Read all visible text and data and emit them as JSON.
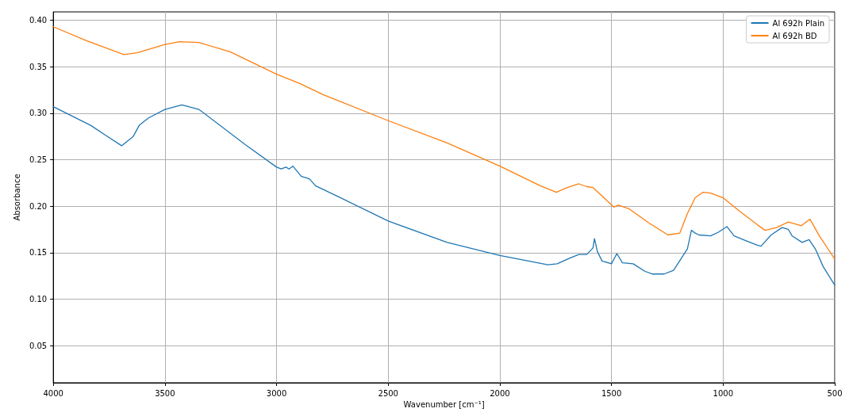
{
  "chart_data": {
    "type": "line",
    "xlabel": "Wavenumber [cm⁻¹]",
    "ylabel": "Absorbance",
    "xlim": [
      4000,
      500
    ],
    "xticks": [
      4000,
      3500,
      3000,
      2500,
      2000,
      1500,
      1000,
      500
    ],
    "ylim": [
      0.01,
      0.409
    ],
    "yticks": [
      {
        "value": 0.05,
        "label": "0.05"
      },
      {
        "value": 0.1,
        "label": "0.10"
      },
      {
        "value": 0.15,
        "label": "0.15"
      },
      {
        "value": 0.2,
        "label": "0.20"
      },
      {
        "value": 0.25,
        "label": "0.25"
      },
      {
        "value": 0.3,
        "label": "0.30"
      },
      {
        "value": 0.35,
        "label": "0.35"
      },
      {
        "value": 0.4,
        "label": "0.40"
      }
    ],
    "grid": true,
    "legend": "top right",
    "marker": "none",
    "line_style": "solid",
    "series": [
      {
        "name": "Al 692h Plain",
        "color": "#1f77b4",
        "x": [
          4000,
          3833,
          3764,
          3694,
          3642,
          3615,
          3573,
          3500,
          3424,
          3347,
          3139,
          3000,
          2979,
          2958,
          2944,
          2927,
          2889,
          2861,
          2851,
          2826,
          2722,
          2500,
          2236,
          2000,
          1785,
          1743,
          1688,
          1646,
          1611,
          1583,
          1576,
          1563,
          1542,
          1500,
          1476,
          1451,
          1403,
          1351,
          1316,
          1264,
          1222,
          1160,
          1142,
          1125,
          1108,
          1056,
          1021,
          983,
          951,
          899,
          847,
          830,
          785,
          736,
          708,
          691,
          646,
          615,
          587,
          552,
          500
        ],
        "values": [
          0.307,
          0.287,
          0.276,
          0.265,
          0.275,
          0.287,
          0.295,
          0.304,
          0.309,
          0.304,
          0.266,
          0.242,
          0.24,
          0.242,
          0.24,
          0.243,
          0.232,
          0.23,
          0.229,
          0.222,
          0.21,
          0.184,
          0.161,
          0.147,
          0.137,
          0.138,
          0.144,
          0.148,
          0.148,
          0.155,
          0.165,
          0.151,
          0.141,
          0.138,
          0.149,
          0.139,
          0.138,
          0.13,
          0.127,
          0.127,
          0.131,
          0.154,
          0.174,
          0.171,
          0.169,
          0.168,
          0.172,
          0.178,
          0.168,
          0.163,
          0.158,
          0.157,
          0.169,
          0.177,
          0.175,
          0.168,
          0.161,
          0.164,
          0.154,
          0.135,
          0.115
        ]
      },
      {
        "name": "Al 692h BD",
        "color": "#ff7f0e",
        "x": [
          4000,
          3851,
          3684,
          3625,
          3500,
          3434,
          3347,
          3208,
          3000,
          2896,
          2792,
          2500,
          2236,
          2000,
          1819,
          1747,
          1698,
          1646,
          1611,
          1583,
          1542,
          1490,
          1469,
          1420,
          1333,
          1247,
          1194,
          1160,
          1125,
          1090,
          1056,
          1000,
          934,
          847,
          812,
          760,
          708,
          649,
          611,
          569,
          500
        ],
        "values": [
          0.393,
          0.378,
          0.363,
          0.365,
          0.374,
          0.377,
          0.376,
          0.366,
          0.342,
          0.332,
          0.32,
          0.292,
          0.268,
          0.243,
          0.222,
          0.215,
          0.22,
          0.224,
          0.221,
          0.22,
          0.211,
          0.199,
          0.201,
          0.197,
          0.182,
          0.169,
          0.171,
          0.192,
          0.209,
          0.215,
          0.214,
          0.209,
          0.196,
          0.18,
          0.174,
          0.177,
          0.183,
          0.179,
          0.186,
          0.168,
          0.143
        ]
      }
    ]
  }
}
